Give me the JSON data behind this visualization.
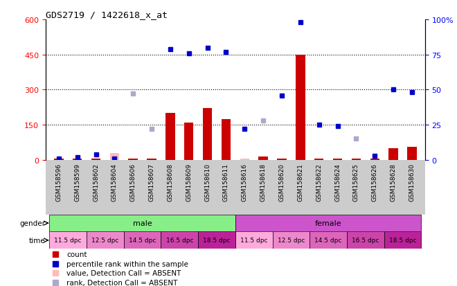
{
  "title": "GDS2719 / 1422618_x_at",
  "samples": [
    "GSM158596",
    "GSM158599",
    "GSM158602",
    "GSM158604",
    "GSM158606",
    "GSM158607",
    "GSM158608",
    "GSM158609",
    "GSM158610",
    "GSM158611",
    "GSM158616",
    "GSM158618",
    "GSM158620",
    "GSM158621",
    "GSM158622",
    "GSM158624",
    "GSM158625",
    "GSM158626",
    "GSM158628",
    "GSM158630"
  ],
  "count_vals": [
    5,
    5,
    5,
    30,
    5,
    5,
    200,
    160,
    220,
    175,
    5,
    15,
    5,
    450,
    5,
    5,
    5,
    5,
    50,
    55
  ],
  "count_absent": [
    false,
    false,
    false,
    true,
    false,
    false,
    false,
    false,
    false,
    false,
    true,
    false,
    false,
    false,
    false,
    false,
    false,
    false,
    false,
    false
  ],
  "rank_vals": [
    1,
    2,
    4,
    1,
    47,
    22,
    79,
    76,
    80,
    77,
    22,
    28,
    46,
    98,
    25,
    24,
    15,
    3,
    50,
    48
  ],
  "rank_absent": [
    false,
    false,
    false,
    false,
    true,
    true,
    false,
    false,
    false,
    false,
    false,
    true,
    false,
    false,
    false,
    false,
    true,
    false,
    false,
    false
  ],
  "time_labels": [
    "11.5 dpc",
    "12.5 dpc",
    "14.5 dpc",
    "16.5 dpc",
    "18.5 dpc"
  ],
  "yticks_left": [
    0,
    150,
    300,
    450,
    600
  ],
  "yticks_right": [
    0,
    25,
    50,
    75,
    100
  ],
  "bar_color": "#cc0000",
  "bar_absent_color": "#ffbbbb",
  "rank_color": "#0000cc",
  "rank_absent_color": "#aaaacc",
  "male_color": "#88ee88",
  "female_color": "#cc55cc",
  "tick_bg_color": "#cccccc",
  "time_colors": [
    "#ffaadd",
    "#ee88cc",
    "#dd66bb",
    "#cc44aa",
    "#bb2299"
  ],
  "legend_items": [
    {
      "color": "#cc0000",
      "label": "count"
    },
    {
      "color": "#0000cc",
      "label": "percentile rank within the sample"
    },
    {
      "color": "#ffbbbb",
      "label": "value, Detection Call = ABSENT"
    },
    {
      "color": "#aaaacc",
      "label": "rank, Detection Call = ABSENT"
    }
  ]
}
